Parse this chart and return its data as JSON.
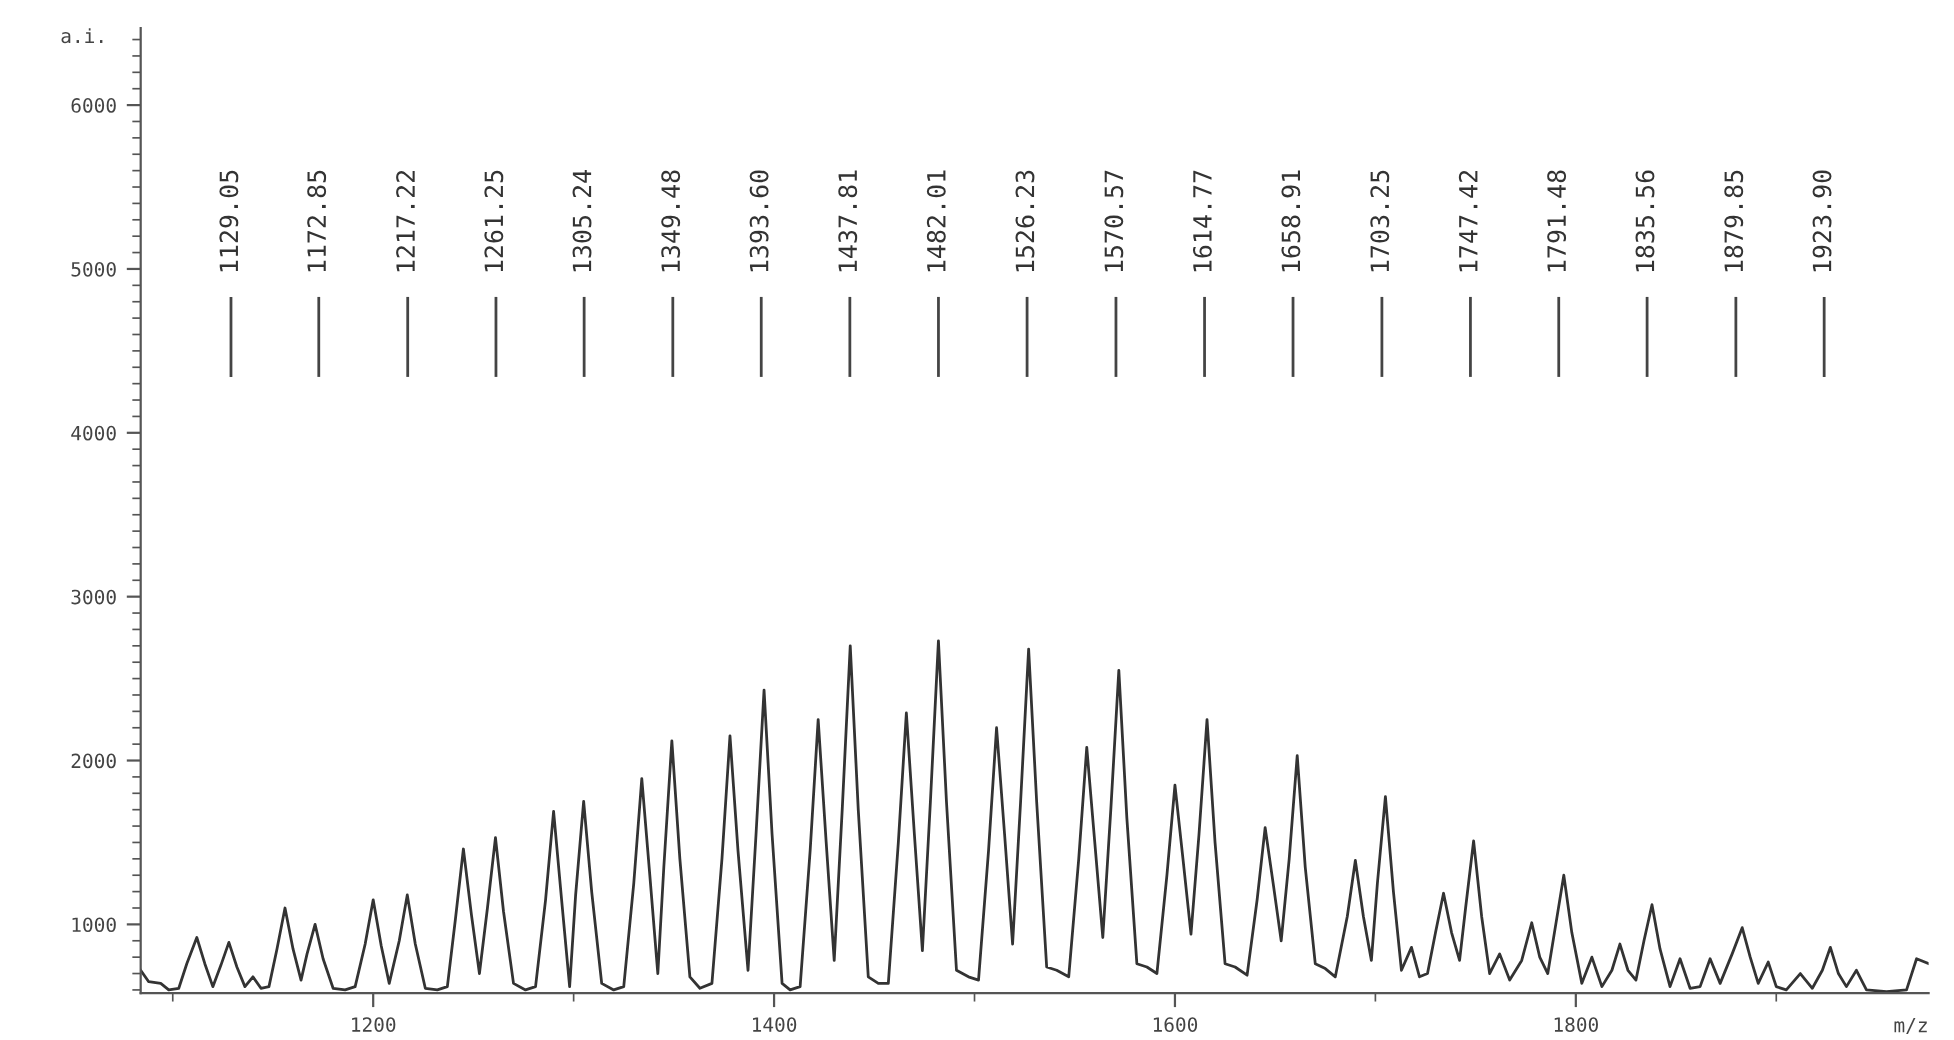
{
  "chart_data": {
    "type": "line",
    "xlabel": "m/z",
    "ylabel": "a.i.",
    "xlim": [
      1084,
      1976
    ],
    "ylim": [
      580,
      6470
    ],
    "xticks": [
      1200,
      1400,
      1600,
      1800
    ],
    "yticks": [
      1000,
      2000,
      3000,
      4000,
      5000,
      6000
    ],
    "grid": false,
    "marker": "none",
    "line_style": "solid",
    "series": [
      {
        "color": "#333333",
        "x": [
          1084,
          1088,
          1094,
          1098,
          1103,
          1107,
          1112,
          1116,
          1120,
          1124,
          1128,
          1132,
          1136,
          1140,
          1144,
          1148,
          1152,
          1156,
          1160,
          1164,
          1167,
          1171,
          1175,
          1180,
          1186,
          1191,
          1196,
          1200,
          1204,
          1208,
          1213,
          1217,
          1221,
          1226,
          1232,
          1237,
          1241,
          1245,
          1249,
          1253,
          1257,
          1261,
          1265,
          1270,
          1276,
          1281,
          1286,
          1290,
          1294,
          1298,
          1301,
          1305,
          1309,
          1314,
          1320,
          1325,
          1330,
          1334,
          1338,
          1342,
          1345,
          1349,
          1353,
          1358,
          1363,
          1369,
          1374,
          1378,
          1382,
          1387,
          1391,
          1395,
          1399,
          1404,
          1408,
          1413,
          1418,
          1422,
          1426,
          1430,
          1434,
          1438,
          1442,
          1447,
          1452,
          1457,
          1462,
          1466,
          1470,
          1474,
          1478,
          1482,
          1486,
          1491,
          1497,
          1502,
          1507,
          1511,
          1515,
          1519,
          1523,
          1527,
          1531,
          1536,
          1541,
          1547,
          1552,
          1556,
          1560,
          1564,
          1568,
          1572,
          1576,
          1581,
          1586,
          1591,
          1596,
          1600,
          1604,
          1608,
          1612,
          1616,
          1620,
          1625,
          1630,
          1636,
          1641,
          1645,
          1649,
          1653,
          1657,
          1661,
          1665,
          1670,
          1675,
          1680,
          1686,
          1690,
          1694,
          1698,
          1701,
          1705,
          1709,
          1713,
          1718,
          1722,
          1726,
          1730,
          1734,
          1738,
          1742,
          1745,
          1749,
          1753,
          1757,
          1762,
          1767,
          1773,
          1778,
          1782,
          1786,
          1790,
          1794,
          1798,
          1803,
          1808,
          1813,
          1818,
          1822,
          1826,
          1830,
          1834,
          1838,
          1842,
          1847,
          1852,
          1857,
          1862,
          1867,
          1872,
          1878,
          1883,
          1887,
          1891,
          1896,
          1900,
          1905,
          1912,
          1918,
          1923,
          1927,
          1931,
          1935,
          1940,
          1945,
          1955,
          1965,
          1970,
          1976
        ],
        "values": [
          720,
          650,
          640,
          600,
          610,
          760,
          920,
          760,
          620,
          750,
          890,
          740,
          620,
          680,
          610,
          620,
          850,
          1100,
          850,
          660,
          820,
          1000,
          790,
          610,
          600,
          620,
          880,
          1150,
          870,
          640,
          900,
          1180,
          880,
          610,
          600,
          620,
          1030,
          1460,
          1060,
          700,
          1100,
          1530,
          1080,
          640,
          600,
          620,
          1150,
          1690,
          1150,
          620,
          1180,
          1750,
          1200,
          640,
          600,
          620,
          1250,
          1890,
          1300,
          700,
          1350,
          2120,
          1400,
          680,
          610,
          640,
          1400,
          2150,
          1450,
          720,
          1550,
          2430,
          1550,
          640,
          600,
          620,
          1450,
          2250,
          1500,
          780,
          1700,
          2700,
          1700,
          680,
          640,
          640,
          1500,
          2290,
          1550,
          840,
          1750,
          2730,
          1750,
          720,
          680,
          660,
          1450,
          2200,
          1550,
          880,
          1750,
          2680,
          1750,
          740,
          720,
          680,
          1400,
          2080,
          1500,
          920,
          1700,
          2550,
          1650,
          760,
          740,
          700,
          1300,
          1850,
          1400,
          940,
          1550,
          2250,
          1500,
          760,
          740,
          690,
          1150,
          1590,
          1250,
          900,
          1400,
          2030,
          1350,
          760,
          730,
          680,
          1050,
          1390,
          1050,
          780,
          1250,
          1780,
          1200,
          720,
          860,
          680,
          700,
          950,
          1190,
          950,
          780,
          1100,
          1510,
          1050,
          700,
          820,
          660,
          780,
          1010,
          800,
          700,
          1000,
          1300,
          950,
          640,
          800,
          620,
          720,
          880,
          720,
          660,
          900,
          1120,
          850,
          620,
          790,
          610,
          620,
          790,
          640,
          820,
          980,
          800,
          640,
          770,
          620,
          600,
          700,
          610,
          720,
          860,
          700,
          620,
          720,
          600,
          590,
          600,
          790,
          760
        ]
      }
    ],
    "ref_lines": [
      {
        "axis": "x",
        "value": 1129.05,
        "label": "1129.05"
      },
      {
        "axis": "x",
        "value": 1172.85,
        "label": "1172.85"
      },
      {
        "axis": "x",
        "value": 1217.22,
        "label": "1217.22"
      },
      {
        "axis": "x",
        "value": 1261.25,
        "label": "1261.25"
      },
      {
        "axis": "x",
        "value": 1305.24,
        "label": "1305.24"
      },
      {
        "axis": "x",
        "value": 1349.48,
        "label": "1349.48"
      },
      {
        "axis": "x",
        "value": 1393.6,
        "label": "1393.60"
      },
      {
        "axis": "x",
        "value": 1437.81,
        "label": "1437.81"
      },
      {
        "axis": "x",
        "value": 1482.01,
        "label": "1482.01"
      },
      {
        "axis": "x",
        "value": 1526.23,
        "label": "1526.23"
      },
      {
        "axis": "x",
        "value": 1570.57,
        "label": "1570.57"
      },
      {
        "axis": "x",
        "value": 1614.77,
        "label": "1614.77"
      },
      {
        "axis": "x",
        "value": 1658.91,
        "label": "1658.91"
      },
      {
        "axis": "x",
        "value": 1703.25,
        "label": "1703.25"
      },
      {
        "axis": "x",
        "value": 1747.42,
        "label": "1747.42"
      },
      {
        "axis": "x",
        "value": 1791.48,
        "label": "1791.48"
      },
      {
        "axis": "x",
        "value": 1835.56,
        "label": "1835.56"
      },
      {
        "axis": "x",
        "value": 1879.85,
        "label": "1879.85"
      },
      {
        "axis": "x",
        "value": 1923.9,
        "label": "1923.90"
      }
    ]
  }
}
